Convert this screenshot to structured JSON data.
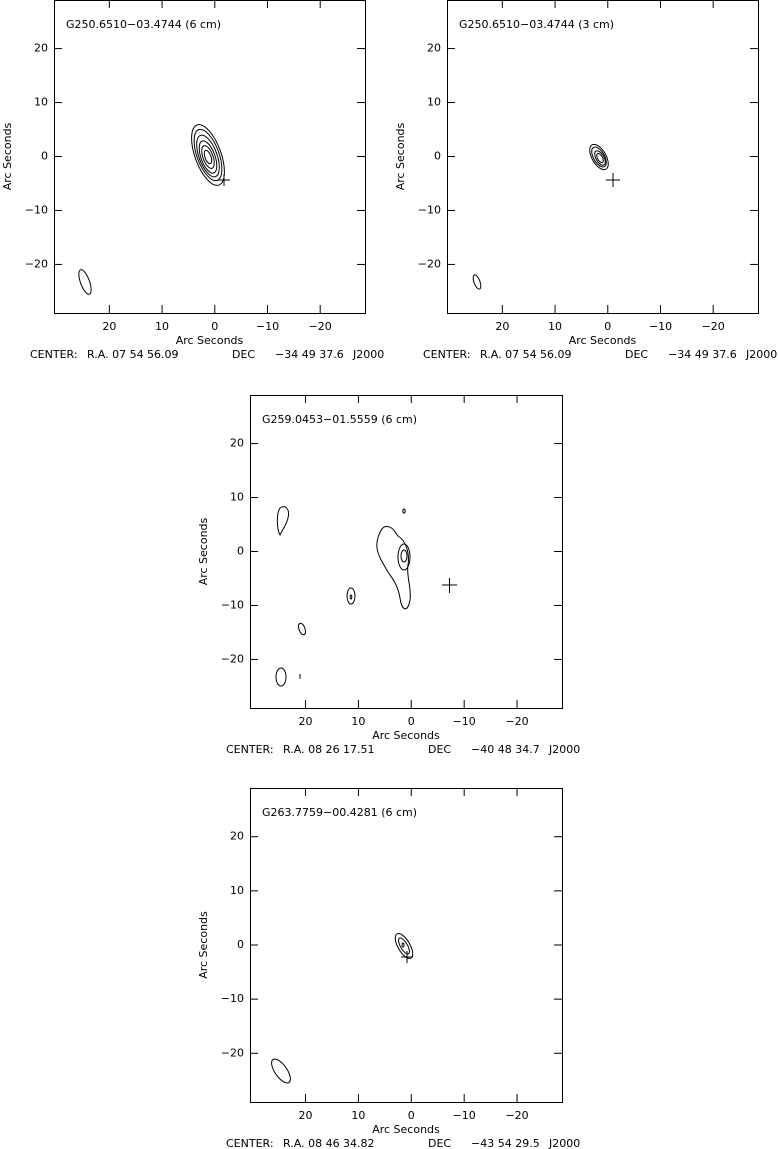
{
  "chart_data": [
    {
      "type": "contour",
      "title": "G250.6510−03.4744 (6 cm)",
      "xlabel": "Arc Seconds",
      "ylabel": "Arc Seconds",
      "xlim": [
        30.5,
        -28.5
      ],
      "ylim": [
        -29,
        29
      ],
      "xticks": [
        20,
        10,
        0,
        {
          "value": -10,
          "label": "−10"
        },
        {
          "value": -20,
          "label": "−20"
        }
      ],
      "yticks": [
        {
          "value": -20,
          "label": "−20"
        },
        {
          "value": -10,
          "label": "−10"
        },
        0,
        10,
        20
      ],
      "center": {
        "label": "CENTER:",
        "ra": "R.A. 07 54 56.09",
        "dec_label": "DEC",
        "dec": "−34 49 37.6",
        "epoch": "J2000"
      }
    },
    {
      "type": "contour",
      "title": "G250.6510−03.4744 (3 cm)",
      "xlabel": "Arc Seconds",
      "ylabel": "Arc Seconds",
      "xlim": [
        30.5,
        -28.5
      ],
      "ylim": [
        -29,
        29
      ],
      "xticks": [
        20,
        10,
        0,
        {
          "value": -10,
          "label": "−10"
        },
        {
          "value": -20,
          "label": "−20"
        }
      ],
      "yticks": [
        {
          "value": -20,
          "label": "−20"
        },
        {
          "value": -10,
          "label": "−10"
        },
        0,
        10,
        20
      ],
      "center": {
        "label": "CENTER:",
        "ra": "R.A. 07 54 56.09",
        "dec_label": "DEC",
        "dec": "−34 49 37.6",
        "epoch": "J2000"
      }
    },
    {
      "type": "contour",
      "title": "G259.0453−01.5559 (6 cm)",
      "xlabel": "Arc Seconds",
      "ylabel": "Arc Seconds",
      "xlim": [
        30.5,
        -28.5
      ],
      "ylim": [
        -29,
        29
      ],
      "xticks": [
        20,
        10,
        0,
        {
          "value": -10,
          "label": "−10"
        },
        {
          "value": -20,
          "label": "−20"
        }
      ],
      "yticks": [
        {
          "value": -20,
          "label": "−20"
        },
        {
          "value": -10,
          "label": "−10"
        },
        0,
        10,
        20
      ],
      "center": {
        "label": "CENTER:",
        "ra": "R.A. 08 26 17.51",
        "dec_label": "DEC",
        "dec": "−40 48 34.7",
        "epoch": "J2000"
      }
    },
    {
      "type": "contour",
      "title": "G263.7759−00.4281 (6 cm)",
      "xlabel": "Arc Seconds",
      "ylabel": "Arc Seconds",
      "xlim": [
        30.5,
        -28.5
      ],
      "ylim": [
        -29,
        29
      ],
      "xticks": [
        20,
        10,
        0,
        {
          "value": -10,
          "label": "−10"
        },
        {
          "value": -20,
          "label": "−20"
        }
      ],
      "yticks": [
        {
          "value": -20,
          "label": "−20"
        },
        {
          "value": -10,
          "label": "−10"
        },
        0,
        10,
        20
      ],
      "center": {
        "label": "CENTER:",
        "ra": "R.A. 08 46 34.82",
        "dec_label": "DEC",
        "dec": "−43 54 29.5",
        "epoch": "J2000"
      }
    }
  ]
}
